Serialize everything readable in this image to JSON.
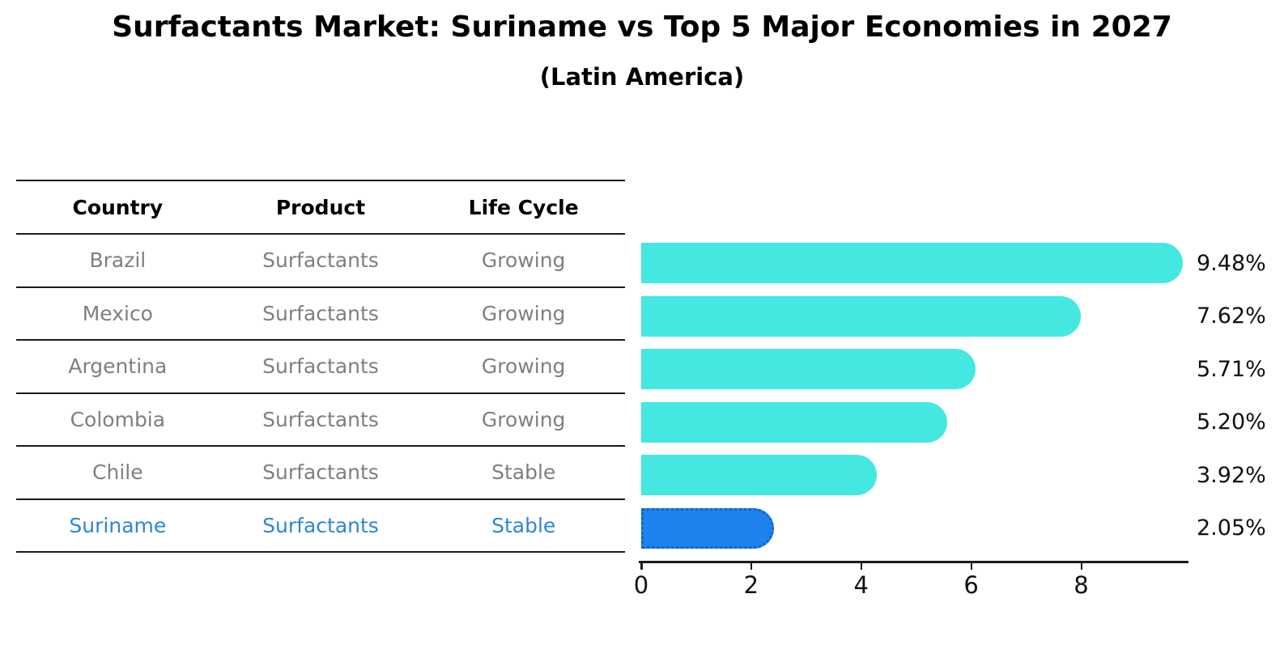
{
  "chart_data": {
    "type": "bar",
    "orientation": "horizontal",
    "title": "Surfactants Market: Suriname vs Top 5 Major Economies in 2027",
    "subtitle": "(Latin America)",
    "categories": [
      "Brazil",
      "Mexico",
      "Argentina",
      "Colombia",
      "Chile",
      "Suriname"
    ],
    "values": [
      9.48,
      7.62,
      5.71,
      5.2,
      3.92,
      2.05
    ],
    "value_labels": [
      "9.48%",
      "7.62%",
      "5.71%",
      "5.20%",
      "3.92%",
      "2.05%"
    ],
    "xlim": [
      0,
      9.95
    ],
    "x_ticks": [
      "0",
      "2",
      "4",
      "6",
      "8"
    ],
    "grid": false,
    "legend_position": "none",
    "highlight_category": "Suriname"
  },
  "table": {
    "headers": [
      "Country",
      "Product",
      "Life Cycle"
    ],
    "rows": [
      {
        "country": "Brazil",
        "product": "Surfactants",
        "life_cycle": "Growing",
        "highlight": false
      },
      {
        "country": "Mexico",
        "product": "Surfactants",
        "life_cycle": "Growing",
        "highlight": false
      },
      {
        "country": "Argentina",
        "product": "Surfactants",
        "life_cycle": "Growing",
        "highlight": false
      },
      {
        "country": "Colombia",
        "product": "Surfactants",
        "life_cycle": "Growing",
        "highlight": false
      },
      {
        "country": "Chile",
        "product": "Surfactants",
        "life_cycle": "Stable",
        "highlight": false
      },
      {
        "country": "Suriname",
        "product": "Surfactants",
        "life_cycle": "Stable",
        "highlight": true
      }
    ]
  },
  "colors": {
    "bar_default": "#45E7E1",
    "bar_highlight": "#1E82EE",
    "bar_highlight_border": "#0C63D4",
    "highlight_text": "#2E86D6",
    "table_text": "#7F7F7F",
    "heading_text": "#000000",
    "axis": "#1A1A1A"
  }
}
